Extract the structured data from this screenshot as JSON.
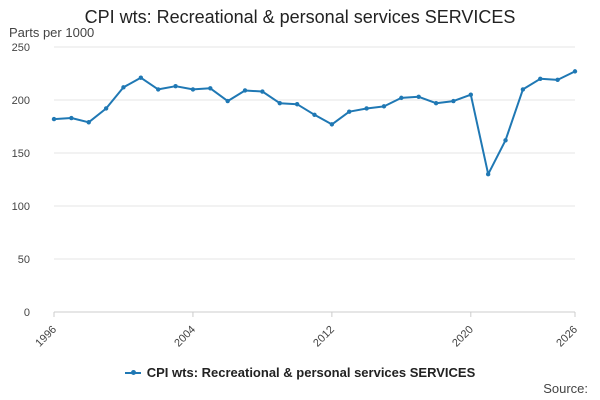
{
  "chart_data": {
    "type": "line",
    "title": "CPI wts: Recreational & personal services SERVICES",
    "ylabel": "Parts per 1000",
    "xlabel": "",
    "ylim": [
      0,
      250
    ],
    "xlim": [
      1996,
      2026
    ],
    "yticks": [
      "0",
      "50",
      "100",
      "150",
      "200",
      "250"
    ],
    "xticks": [
      "1996",
      "2004",
      "2012",
      "2020",
      "2026"
    ],
    "grid": true,
    "legend_position": "bottom",
    "series": [
      {
        "name": "CPI wts: Recreational & personal services SERVICES",
        "color": "#1f78b4",
        "x": [
          1996,
          1997,
          1998,
          1999,
          2000,
          2001,
          2002,
          2003,
          2004,
          2005,
          2006,
          2007,
          2008,
          2009,
          2010,
          2011,
          2012,
          2013,
          2014,
          2015,
          2016,
          2017,
          2018,
          2019,
          2020,
          2021,
          2022,
          2023,
          2024,
          2025,
          2026
        ],
        "values": [
          182,
          183,
          179,
          192,
          212,
          221,
          210,
          213,
          210,
          211,
          199,
          209,
          208,
          197,
          196,
          186,
          177,
          189,
          192,
          194,
          202,
          203,
          197,
          199,
          205,
          130,
          162,
          210,
          220,
          219,
          227
        ]
      }
    ]
  },
  "source_label": "Source:"
}
